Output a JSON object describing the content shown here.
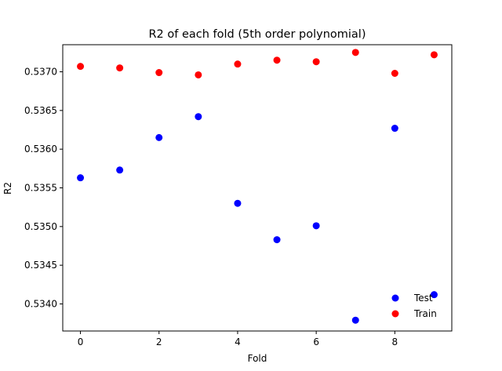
{
  "chart_data": {
    "type": "scatter",
    "title": "R2 of each fold (5th order polynomial)",
    "xlabel": "Fold",
    "ylabel": "R2",
    "xlim": [
      -0.45,
      9.45
    ],
    "ylim": [
      0.53365,
      0.53735
    ],
    "xticks": [
      0,
      2,
      4,
      6,
      8
    ],
    "xtick_labels": [
      "0",
      "2",
      "4",
      "6",
      "8"
    ],
    "yticks": [
      0.534,
      0.5345,
      0.535,
      0.5355,
      0.536,
      0.5365,
      0.537
    ],
    "ytick_labels": [
      "0.5340",
      "0.5345",
      "0.5350",
      "0.5355",
      "0.5360",
      "0.5365",
      "0.5370"
    ],
    "grid": false,
    "legend_position": "lower-right",
    "x": [
      0,
      1,
      2,
      3,
      4,
      5,
      6,
      7,
      8,
      9
    ],
    "series": [
      {
        "name": "Test",
        "color": "#0000ff",
        "values": [
          0.53563,
          0.53573,
          0.53615,
          0.53642,
          0.5353,
          0.53483,
          0.53501,
          0.53379,
          0.53627,
          0.53412
        ]
      },
      {
        "name": "Train",
        "color": "#ff0000",
        "values": [
          0.53707,
          0.53705,
          0.53699,
          0.53696,
          0.5371,
          0.53715,
          0.53713,
          0.53725,
          0.53698,
          0.53722
        ]
      }
    ]
  }
}
